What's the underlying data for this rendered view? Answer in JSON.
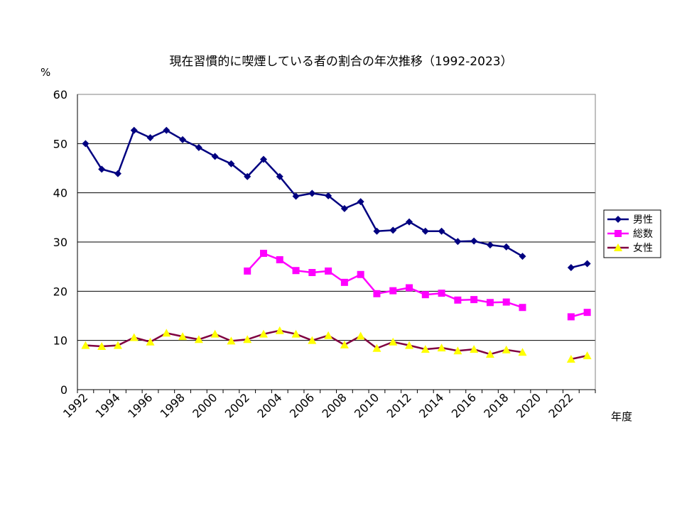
{
  "chart_data": {
    "type": "line",
    "title": "現在習慣的に喫煙している者の割合の年次推移（1992-2023）",
    "ylabel": "%",
    "xlabel": "年度",
    "ylim": [
      0,
      60
    ],
    "yticks": [
      "0",
      "10",
      "20",
      "30",
      "40",
      "50",
      "60"
    ],
    "xticks": [
      "1992",
      "1994",
      "1996",
      "1998",
      "2000",
      "2002",
      "2004",
      "2006",
      "2008",
      "2010",
      "2012",
      "2014",
      "2016",
      "2018",
      "2020",
      "2022"
    ],
    "x": [
      1992,
      1993,
      1994,
      1995,
      1996,
      1997,
      1998,
      1999,
      2000,
      2001,
      2002,
      2003,
      2004,
      2005,
      2006,
      2007,
      2008,
      2009,
      2010,
      2011,
      2012,
      2013,
      2014,
      2015,
      2016,
      2017,
      2018,
      2019,
      2020,
      2021,
      2022,
      2023
    ],
    "grid": "horizontal",
    "legend_position": "right",
    "series": [
      {
        "name": "男性",
        "color": "#000080",
        "marker": "diamond",
        "values": [
          50.0,
          44.8,
          43.9,
          52.7,
          51.2,
          52.7,
          50.8,
          49.2,
          47.4,
          45.9,
          43.3,
          46.8,
          43.3,
          39.3,
          39.9,
          39.4,
          36.8,
          38.2,
          32.2,
          32.4,
          34.1,
          32.2,
          32.2,
          30.1,
          30.2,
          29.4,
          29.0,
          27.1,
          null,
          null,
          24.8,
          25.6
        ]
      },
      {
        "name": "総数",
        "color": "#FF00FF",
        "marker": "square",
        "values": [
          null,
          null,
          null,
          null,
          null,
          null,
          null,
          null,
          null,
          null,
          24.1,
          27.7,
          26.4,
          24.2,
          23.8,
          24.1,
          21.8,
          23.4,
          19.5,
          20.1,
          20.7,
          19.3,
          19.6,
          18.2,
          18.3,
          17.7,
          17.8,
          16.7,
          null,
          null,
          14.8,
          15.7
        ]
      },
      {
        "name": "女性",
        "color": "#FFFF00",
        "line_color": "#800040",
        "marker": "triangle",
        "values": [
          9.0,
          8.8,
          9.0,
          10.6,
          9.7,
          11.5,
          10.8,
          10.2,
          11.3,
          9.9,
          10.2,
          11.3,
          12.0,
          11.3,
          10.0,
          11.0,
          9.1,
          10.9,
          8.4,
          9.7,
          9.0,
          8.2,
          8.5,
          7.9,
          8.2,
          7.2,
          8.1,
          7.6,
          null,
          null,
          6.2,
          6.9
        ]
      }
    ]
  }
}
